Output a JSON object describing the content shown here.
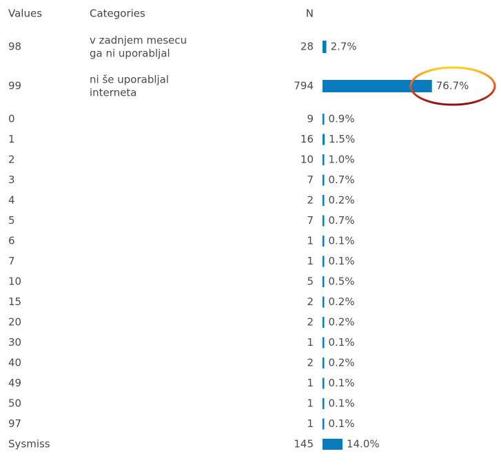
{
  "table": {
    "headers": [
      "Values",
      "Categories",
      "N"
    ],
    "rows": [
      {
        "value": "98",
        "category": [
          "v zadnjem mesecu",
          "ga ni uporabljal"
        ],
        "n": 28,
        "percent": {
          "value": 2.7,
          "label": "2.7%"
        }
      },
      {
        "value": "99",
        "category": [
          "ni še uporabljal",
          "interneta"
        ],
        "n": 794,
        "percent": {
          "value": 76.7,
          "label": "76.7%"
        }
      },
      {
        "value": "0",
        "n": 9,
        "percent": {
          "value": 0.9,
          "label": "0.9%"
        }
      },
      {
        "value": "1",
        "n": 16,
        "percent": {
          "value": 1.5,
          "label": "1.5%"
        }
      },
      {
        "value": "2",
        "n": 10,
        "percent": {
          "value": 1.0,
          "label": "1.0%"
        }
      },
      {
        "value": "3",
        "n": 7,
        "percent": {
          "value": 0.7,
          "label": "0.7%"
        }
      },
      {
        "value": "4",
        "n": 2,
        "percent": {
          "value": 0.2,
          "label": "0.2%"
        }
      },
      {
        "value": "5",
        "n": 7,
        "percent": {
          "value": 0.7,
          "label": "0.7%"
        }
      },
      {
        "value": "6",
        "n": 1,
        "percent": {
          "value": 0.1,
          "label": "0.1%"
        }
      },
      {
        "value": "7",
        "n": 1,
        "percent": {
          "value": 0.1,
          "label": "0.1%"
        }
      },
      {
        "value": "10",
        "n": 5,
        "percent": {
          "value": 0.5,
          "label": "0.5%"
        }
      },
      {
        "value": "15",
        "n": 2,
        "percent": {
          "value": 0.2,
          "label": "0.2%"
        }
      },
      {
        "value": "20",
        "n": 2,
        "percent": {
          "value": 0.2,
          "label": "0.2%"
        }
      },
      {
        "value": "30",
        "n": 1,
        "percent": {
          "value": 0.1,
          "label": "0.1%"
        }
      },
      {
        "value": "40",
        "n": 2,
        "percent": {
          "value": 0.2,
          "label": "0.2%"
        }
      },
      {
        "value": "49",
        "n": 1,
        "percent": {
          "value": 0.1,
          "label": "0.1%"
        }
      },
      {
        "value": "50",
        "n": 1,
        "percent": {
          "value": 0.1,
          "label": "0.1%"
        }
      },
      {
        "value": "97",
        "n": 1,
        "percent": {
          "value": 0.1,
          "label": "0.1%"
        }
      },
      {
        "value": "Sysmiss",
        "n": 145,
        "percent": {
          "value": 14.0,
          "label": "14.0%"
        }
      }
    ]
  }
}
